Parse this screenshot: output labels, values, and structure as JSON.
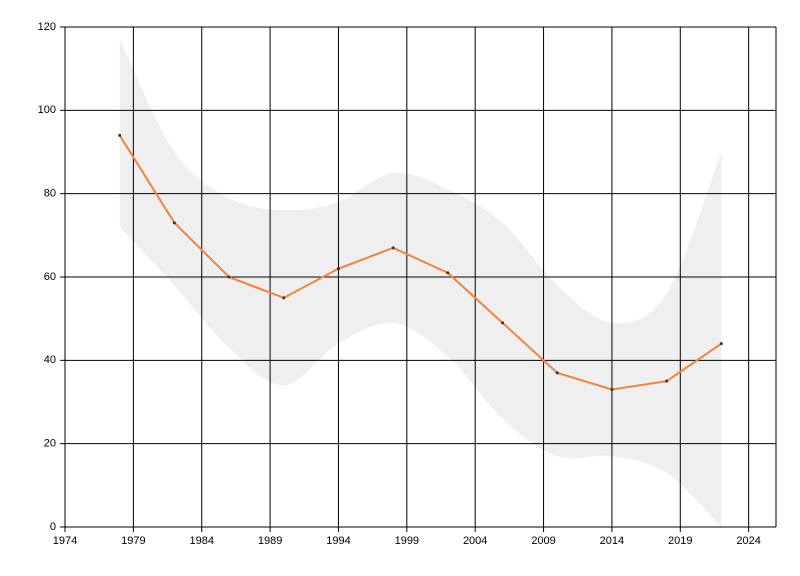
{
  "chart_data": {
    "type": "line",
    "x": [
      1978,
      1982,
      1986,
      1990,
      1994,
      1998,
      2002,
      2006,
      2010,
      2014,
      2018,
      2022
    ],
    "series": [
      {
        "color": "#f5813f",
        "values": [
          94,
          73,
          60,
          55,
          62,
          67,
          61,
          49,
          37,
          33,
          35,
          44
        ]
      }
    ],
    "band": {
      "color": "#efefef",
      "upper": [
        117,
        90,
        79,
        76,
        78,
        85,
        81,
        73,
        58,
        49,
        56,
        90
      ],
      "lower": [
        72,
        58,
        43,
        34,
        44,
        49,
        41,
        26,
        17,
        17,
        13,
        0
      ]
    },
    "xlim": [
      1974,
      2026
    ],
    "xticks": [
      1974,
      1979,
      1984,
      1989,
      1994,
      1999,
      2004,
      2009,
      2014,
      2019,
      2024
    ],
    "ylim": [
      0,
      120
    ],
    "yticks": [
      0,
      20,
      40,
      60,
      80,
      100,
      120
    ],
    "grid": true
  }
}
